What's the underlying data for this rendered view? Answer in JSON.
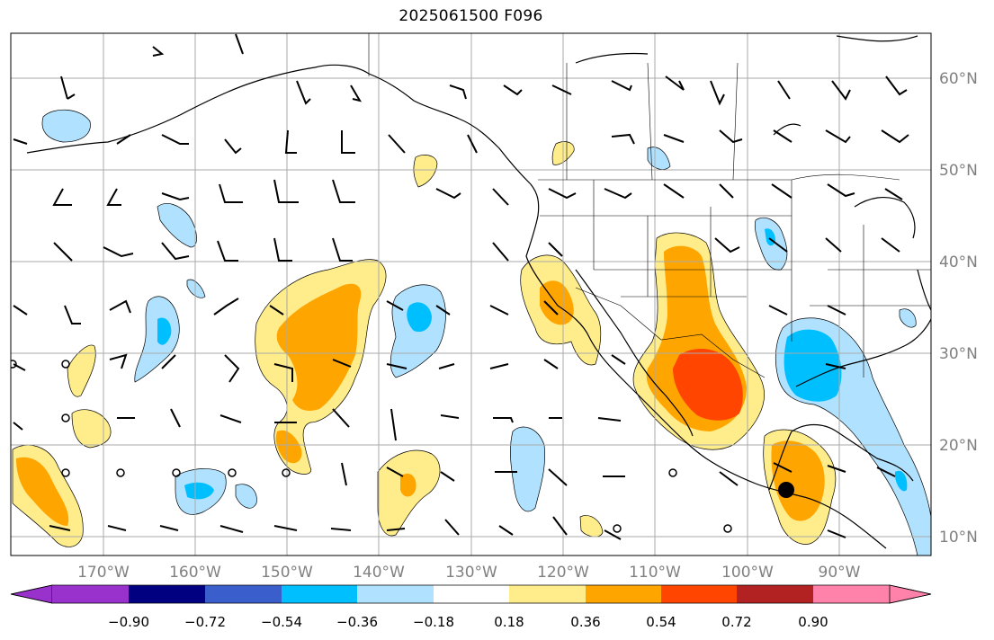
{
  "map": {
    "title": "2025061500 F096",
    "lon_labels": [
      "170°W",
      "160°W",
      "150°W",
      "140°W",
      "130°W",
      "120°W",
      "110°W",
      "100°W",
      "90°W"
    ],
    "lat_labels": [
      "60°N",
      "50°N",
      "40°N",
      "30°N",
      "20°N",
      "10°N"
    ],
    "extent": {
      "lon": [
        -180,
        -80
      ],
      "lat": [
        8,
        65
      ]
    },
    "marker": {
      "lon": -95.8,
      "lat": 15.3,
      "label_visible": false
    }
  },
  "colorbar": {
    "tick_labels": [
      "−0.90",
      "−0.72",
      "−0.54",
      "−0.36",
      "−0.18",
      "0.18",
      "0.36",
      "0.54",
      "0.72",
      "0.90"
    ],
    "levels": [
      -0.9,
      -0.72,
      -0.54,
      -0.36,
      -0.18,
      0.18,
      0.36,
      0.54,
      0.72,
      0.9
    ],
    "colors": [
      "#9932cc",
      "#000080",
      "#3a5fcd",
      "#00bfff",
      "#b0e2ff",
      "#ffffff",
      "#ffec8b",
      "#ffa500",
      "#ff4500",
      "#b22222",
      "#ff82ab"
    ],
    "extend": "both"
  }
}
